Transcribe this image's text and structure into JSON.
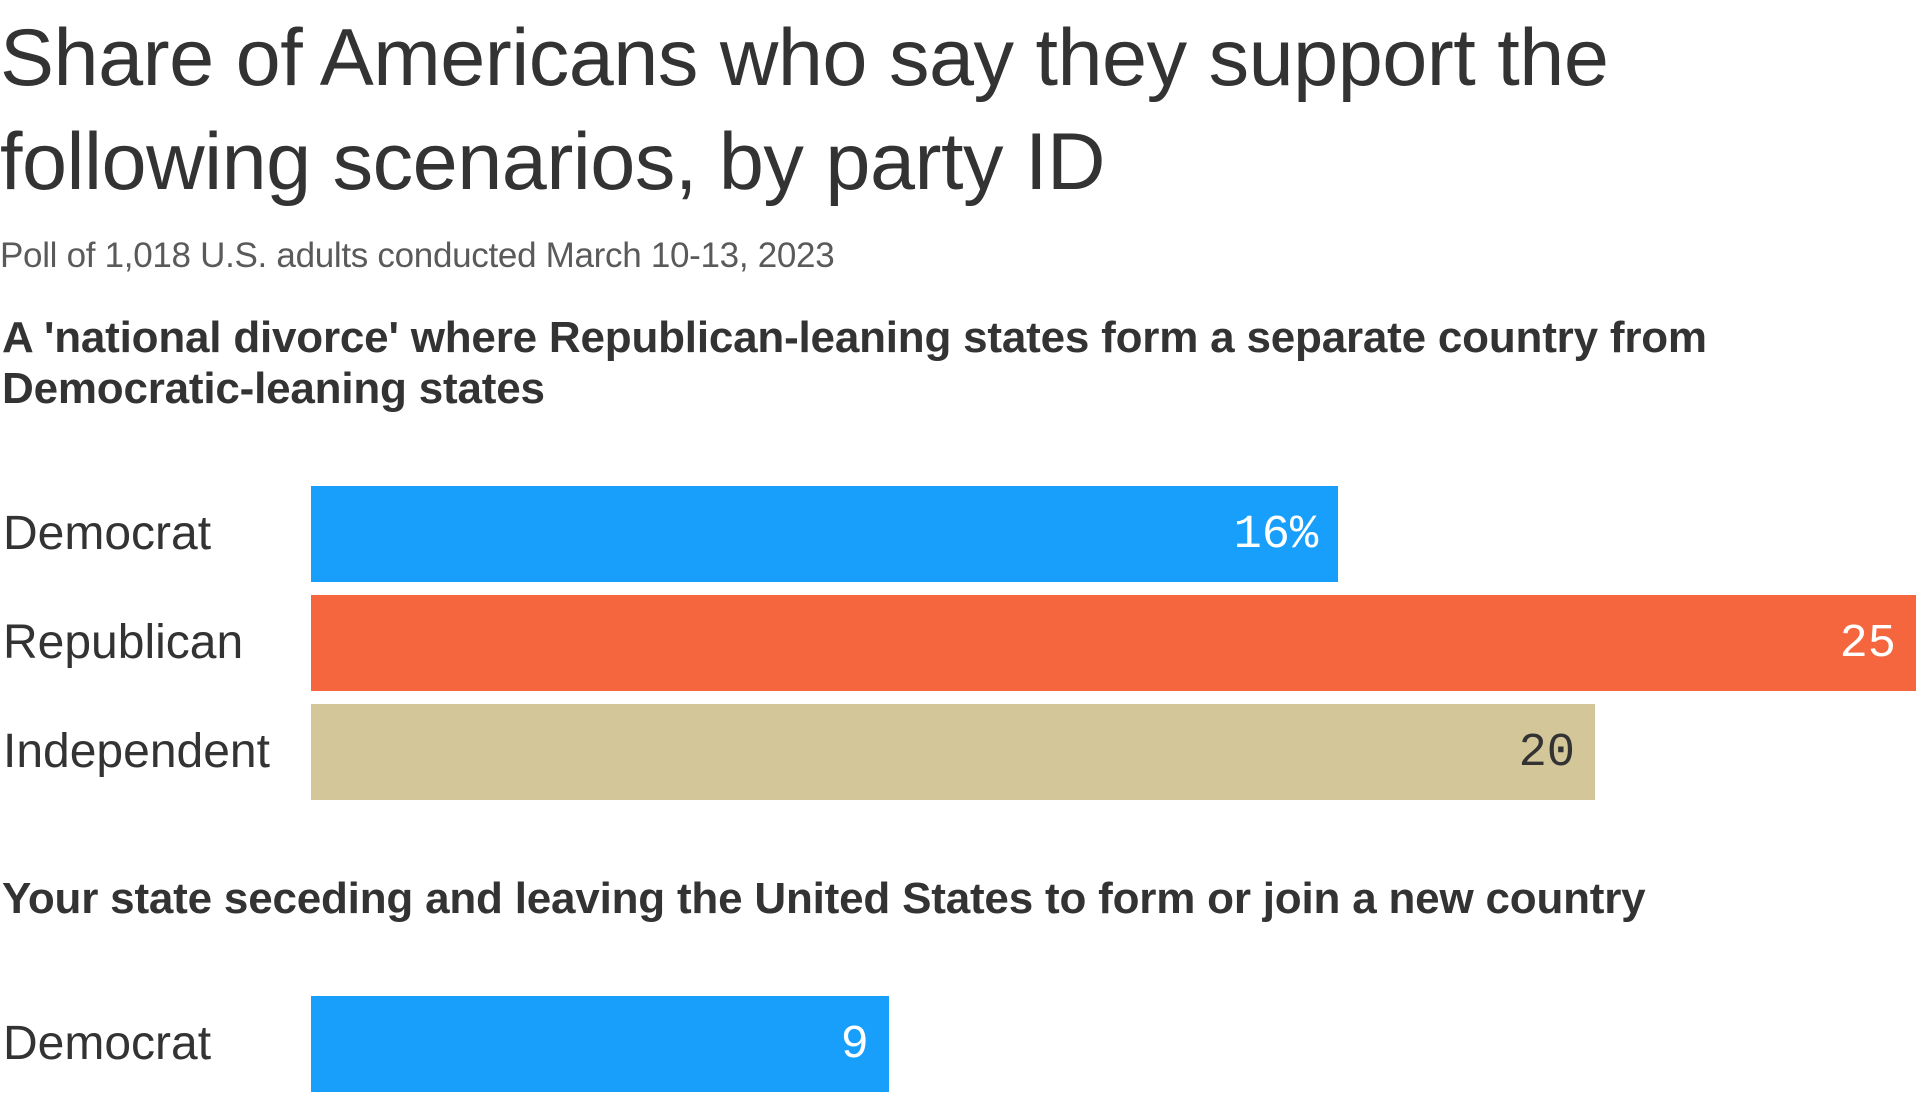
{
  "title": "Share of Americans who say they support the following scenarios, by party ID",
  "subtitle": "Poll of 1,018 U.S. adults conducted March 10-13, 2023",
  "colors": {
    "Democrat": "#189ffb",
    "Republican": "#f5653e",
    "Independent": "#d3c799",
    "label_light": "#ffffff",
    "label_dark": "#333333"
  },
  "chart_data": [
    {
      "type": "bar",
      "orientation": "horizontal",
      "title": "A 'national divorce' where Republican-leaning states form a separate country from Democratic-leaning states",
      "categories": [
        "Democrat",
        "Republican",
        "Independent"
      ],
      "values": [
        16,
        25,
        20
      ],
      "value_labels": [
        "16%",
        "25",
        "20"
      ],
      "xlim": [
        0,
        25
      ],
      "unit": "%"
    },
    {
      "type": "bar",
      "orientation": "horizontal",
      "title": "Your state seceding and leaving the United States to form or join a new country",
      "categories": [
        "Democrat"
      ],
      "values": [
        9
      ],
      "value_labels": [
        "9"
      ],
      "xlim": [
        0,
        25
      ],
      "unit": "%"
    }
  ]
}
